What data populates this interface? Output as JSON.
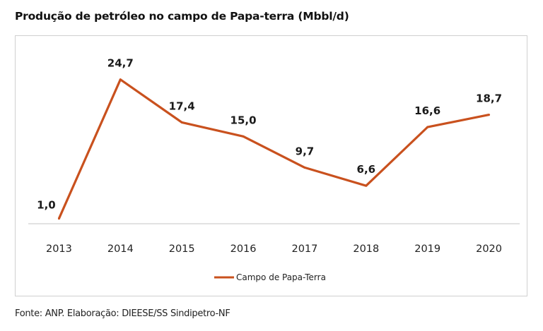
{
  "chart_data": {
    "type": "line",
    "title": "Produção de petróleo no campo de Papa-terra (Mbbl/d)",
    "xlabel": "",
    "ylabel": "",
    "categories": [
      "2013",
      "2014",
      "2015",
      "2016",
      "2017",
      "2018",
      "2019",
      "2020"
    ],
    "series": [
      {
        "name": "Campo de Papa-Terra",
        "color": "#C9511E",
        "values": [
          1.0,
          24.7,
          17.4,
          15.0,
          9.7,
          6.6,
          16.6,
          18.7
        ],
        "labels": [
          "1,0",
          "24,7",
          "17,4",
          "15,0",
          "9,7",
          "6,6",
          "16,6",
          "18,7"
        ]
      }
    ],
    "ylim": [
      0,
      27
    ],
    "grid": false,
    "y_axis_visible": false,
    "legend": {
      "position": "bottom",
      "entries": [
        "Campo de Papa-Terra"
      ]
    }
  },
  "source_note": "Fonte: ANP. Elaboração: DIEESE/SS Sindipetro-NF"
}
